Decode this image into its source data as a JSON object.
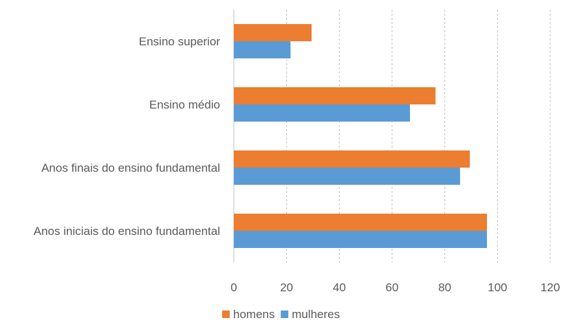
{
  "chart_data": {
    "type": "bar",
    "orientation": "horizontal",
    "categories": [
      "Ensino superior",
      "Ensino médio",
      "Anos finais do ensino fundamental",
      "Anos iniciais do ensino fundamental"
    ],
    "series": [
      {
        "name": "homens",
        "color": "#ED7D31",
        "values": [
          29.5,
          76.5,
          89.5,
          96
        ]
      },
      {
        "name": "mulheres",
        "color": "#5B9BD5",
        "values": [
          21.5,
          66.8,
          85.8,
          96
        ]
      }
    ],
    "xlim": [
      0,
      120
    ],
    "xticks": [
      0,
      20,
      40,
      60,
      80,
      100,
      120
    ],
    "grid": "vertical-dashed",
    "legend_position": "bottom",
    "title": "",
    "xlabel": "",
    "ylabel": ""
  }
}
